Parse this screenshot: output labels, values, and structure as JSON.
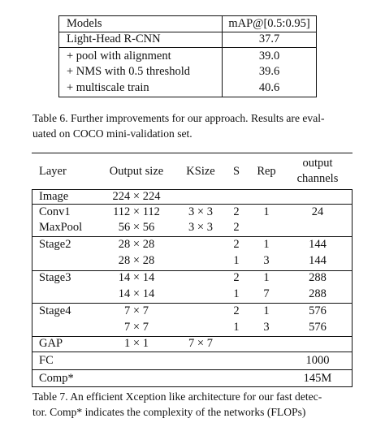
{
  "table6": {
    "header": {
      "models": "Models",
      "map": "mAP@[0.5:0.95]"
    },
    "rows": [
      {
        "model": "Light-Head R-CNN",
        "map": "37.7"
      },
      {
        "model": "+ pool with alignment",
        "map": "39.0"
      },
      {
        "model": "+ NMS with 0.5 threshold",
        "map": "39.6"
      },
      {
        "model": "+ multiscale train",
        "map": "40.6"
      }
    ],
    "caption_line1": "Table 6. Further improvements for our approach. Results are eval-",
    "caption_line2": "uated on COCO mini-validation set."
  },
  "table7": {
    "header": {
      "layer": "Layer",
      "output_size": "Output size",
      "ksize": "KSize",
      "s": "S",
      "rep": "Rep",
      "out_ch_1": "output",
      "out_ch_2": "channels"
    },
    "rows": [
      {
        "layer": "Image",
        "size": "224 × 224",
        "ksize": "",
        "s": "",
        "rep": "",
        "ch": ""
      },
      {
        "layer": "Conv1",
        "size": "112 × 112",
        "ksize": "3 × 3",
        "s": "2",
        "rep": "1",
        "ch": "24"
      },
      {
        "layer": "MaxPool",
        "size": "56 × 56",
        "ksize": "3 × 3",
        "s": "2",
        "rep": "",
        "ch": ""
      },
      {
        "layer": "Stage2",
        "size": "28 × 28",
        "ksize": "",
        "s": "2",
        "rep": "1",
        "ch": "144"
      },
      {
        "layer": "",
        "size": "28 × 28",
        "ksize": "",
        "s": "1",
        "rep": "3",
        "ch": "144"
      },
      {
        "layer": "Stage3",
        "size": "14 × 14",
        "ksize": "",
        "s": "2",
        "rep": "1",
        "ch": "288"
      },
      {
        "layer": "",
        "size": "14 × 14",
        "ksize": "",
        "s": "1",
        "rep": "7",
        "ch": "288"
      },
      {
        "layer": "Stage4",
        "size": "7 × 7",
        "ksize": "",
        "s": "2",
        "rep": "1",
        "ch": "576"
      },
      {
        "layer": "",
        "size": "7 × 7",
        "ksize": "",
        "s": "1",
        "rep": "3",
        "ch": "576"
      },
      {
        "layer": "GAP",
        "size": "1 × 1",
        "ksize": "7 × 7",
        "s": "",
        "rep": "",
        "ch": ""
      },
      {
        "layer": "FC",
        "size": "",
        "ksize": "",
        "s": "",
        "rep": "",
        "ch": "1000"
      },
      {
        "layer": "Comp*",
        "size": "",
        "ksize": "",
        "s": "",
        "rep": "",
        "ch": "145M"
      }
    ],
    "caption_line1": "Table 7. An efficient Xception like architecture for our fast detec-",
    "caption_line2": "tor. Comp* indicates the complexity of the networks (FLOPs)"
  }
}
